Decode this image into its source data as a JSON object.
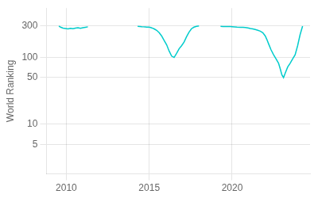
{
  "chart_data": {
    "type": "line",
    "ylabel": "World Ranking",
    "color": "#00cccc",
    "log": "y",
    "grid": true,
    "xlim": [
      2008.8,
      2024.7
    ],
    "xticks": [
      2010,
      2015,
      2020
    ],
    "ylim": [
      1.8,
      550
    ],
    "yticks": [
      5,
      10,
      50,
      100,
      300
    ],
    "series": [
      {
        "x": [
          2009.55,
          2009.65,
          2009.8,
          2009.95,
          2010.1,
          2010.25,
          2010.4,
          2010.55,
          2010.7,
          2010.85,
          2011.0,
          2011.15,
          2011.3
        ],
        "values": [
          296,
          285,
          276,
          272,
          268,
          274,
          270,
          276,
          279,
          274,
          280,
          284,
          288
        ]
      },
      {
        "x": [
          2014.3,
          2014.45,
          2014.55,
          2014.65,
          2014.75,
          2014.85,
          2014.95,
          2015.05,
          2015.15,
          2015.3,
          2015.45,
          2015.6,
          2015.75,
          2015.9,
          2016.05,
          2016.2,
          2016.35,
          2016.5,
          2016.65,
          2016.8,
          2016.95,
          2017.1,
          2017.25,
          2017.4,
          2017.55,
          2017.7,
          2017.85,
          2018.0
        ],
        "values": [
          293,
          291,
          289,
          288,
          287,
          286,
          285,
          283,
          278,
          268,
          255,
          235,
          210,
          180,
          155,
          125,
          105,
          100,
          115,
          135,
          150,
          170,
          205,
          240,
          270,
          285,
          293,
          297
        ]
      },
      {
        "x": [
          2019.3,
          2019.45,
          2019.6,
          2019.75,
          2019.9,
          2020.0,
          2020.15,
          2020.3,
          2020.5,
          2020.65,
          2020.8,
          2020.95,
          2021.1,
          2021.25,
          2021.4,
          2021.55,
          2021.7,
          2021.85,
          2022.0,
          2022.1,
          2022.2,
          2022.35,
          2022.5,
          2022.65,
          2022.8,
          2022.9,
          2023.0,
          2023.1,
          2023.2,
          2023.35,
          2023.5,
          2023.65,
          2023.8,
          2023.95,
          2024.1,
          2024.25
        ],
        "values": [
          293,
          291,
          290,
          291,
          290,
          289,
          287,
          285,
          284,
          283,
          282,
          278,
          272,
          268,
          262,
          255,
          248,
          235,
          210,
          185,
          160,
          130,
          110,
          95,
          82,
          68,
          55,
          50,
          58,
          72,
          82,
          95,
          110,
          150,
          220,
          295
        ]
      }
    ]
  }
}
